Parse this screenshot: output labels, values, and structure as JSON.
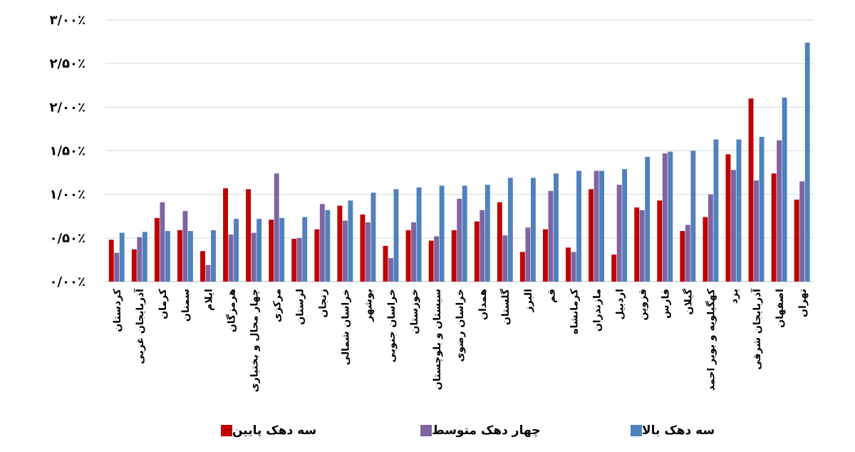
{
  "chart_data": {
    "type": "bar",
    "categories": [
      "کردستان",
      "آذربایجان غربی",
      "کرمان",
      "سمنان",
      "ایلام",
      "هرمزگان",
      "چهار محال و بختیاری",
      "مرکزی",
      "لرستان",
      "زنجان",
      "خراسان شمالی",
      "بوشهر",
      "خراسان جنوبی",
      "خوزستان",
      "سیستان و بلوچستان",
      "خراسان رضوی",
      "همدان",
      "گلستان",
      "البرز",
      "قم",
      "کرمانشاه",
      "مازندران",
      "اردبیل",
      "قزوین",
      "فارس",
      "گیلان",
      "کهگیلویه و بویر احمد",
      "یزد",
      "آذربایجان شرقی",
      "اصفهان",
      "تهران"
    ],
    "series": [
      {
        "name": "سه دهک پایین",
        "color": "#c00000",
        "values": [
          0.48,
          0.37,
          0.73,
          0.59,
          0.35,
          1.07,
          1.06,
          0.71,
          0.49,
          0.6,
          0.87,
          0.77,
          0.41,
          0.59,
          0.47,
          0.59,
          0.69,
          0.91,
          0.34,
          0.6,
          0.39,
          1.06,
          0.31,
          0.85,
          0.93,
          0.58,
          0.74,
          1.46,
          2.1,
          1.24,
          0.94
        ]
      },
      {
        "name": "چهار دهک متوسط",
        "color": "#8064a2",
        "values": [
          0.33,
          0.51,
          0.91,
          0.81,
          0.19,
          0.54,
          0.56,
          1.24,
          0.5,
          0.89,
          0.7,
          0.68,
          0.27,
          0.68,
          0.52,
          0.95,
          0.82,
          0.53,
          0.62,
          1.04,
          0.34,
          1.27,
          1.11,
          0.82,
          1.47,
          0.65,
          1.0,
          1.28,
          1.16,
          1.62,
          1.15
        ]
      },
      {
        "name": "سه دهک بالا",
        "color": "#4f81bd",
        "values": [
          0.56,
          0.57,
          0.58,
          0.58,
          0.59,
          0.72,
          0.72,
          0.73,
          0.74,
          0.82,
          0.93,
          1.02,
          1.06,
          1.08,
          1.1,
          1.1,
          1.11,
          1.19,
          1.19,
          1.24,
          1.27,
          1.27,
          1.29,
          1.43,
          1.49,
          1.5,
          1.63,
          1.63,
          1.66,
          2.11,
          2.74
        ]
      }
    ],
    "y_ticks": [
      "۰/۰۰٪",
      "۰/۵۰٪",
      "۱/۰۰٪",
      "۱/۵۰٪",
      "۲/۰۰٪",
      "۲/۵۰٪",
      "۳/۰۰٪"
    ],
    "ylim": [
      0,
      3.0
    ],
    "grid": true,
    "legend_position": "bottom"
  },
  "legend": {
    "low": "سه دهک پایین",
    "mid": "چهار دهک متوسط",
    "high": "سه دهک بالا"
  }
}
